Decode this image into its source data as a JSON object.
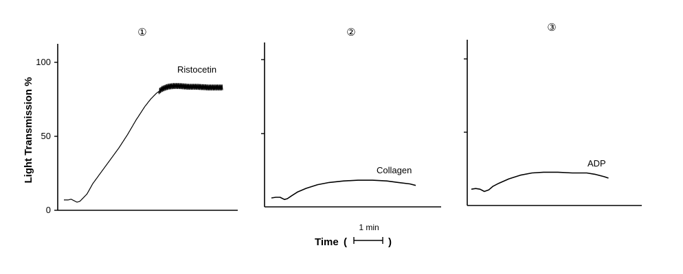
{
  "chart_data": [
    {
      "type": "line",
      "panel_number": "①",
      "ylabel": "Light Transmission %",
      "yticks": [
        "100",
        "50",
        "0"
      ],
      "ylim": [
        0,
        110
      ],
      "series": [
        {
          "name": "Ristocetin",
          "noisy_from_minute": 3.3,
          "x": [
            0,
            0.15,
            0.25,
            0.35,
            0.45,
            0.55,
            0.65,
            0.8,
            1.0,
            1.3,
            1.6,
            1.9,
            2.2,
            2.5,
            2.8,
            3.0,
            3.2,
            3.4,
            3.6,
            3.8,
            4.0,
            4.3,
            4.6,
            5.0,
            5.5
          ],
          "y": [
            7,
            7,
            7.5,
            6.5,
            5.5,
            6,
            8,
            11,
            18,
            26,
            34,
            42,
            51,
            61,
            70,
            75,
            79,
            82,
            83.5,
            84,
            84,
            83.5,
            83.5,
            83,
            83
          ]
        }
      ]
    },
    {
      "type": "line",
      "panel_number": "②",
      "ylim": [
        0,
        110
      ],
      "series": [
        {
          "name": "Collagen",
          "x": [
            0,
            0.15,
            0.3,
            0.45,
            0.55,
            0.7,
            0.9,
            1.2,
            1.6,
            2.0,
            2.5,
            3.0,
            3.5,
            4.0,
            4.4,
            4.8,
            5.0
          ],
          "y": [
            6,
            6.5,
            6.5,
            5,
            5.5,
            7.5,
            10,
            12.5,
            15,
            16.5,
            17.5,
            18,
            18,
            17.5,
            16.5,
            15.5,
            14.5
          ]
        }
      ]
    },
    {
      "type": "line",
      "panel_number": "③",
      "ylim": [
        0,
        110
      ],
      "series": [
        {
          "name": "ADP",
          "x": [
            0,
            0.15,
            0.3,
            0.45,
            0.6,
            0.75,
            0.95,
            1.3,
            1.7,
            2.1,
            2.5,
            3.0,
            3.5,
            4.0,
            4.3,
            4.6,
            4.75
          ],
          "y": [
            11,
            11.5,
            11,
            9.5,
            10.5,
            13,
            15,
            18,
            20.5,
            22,
            22.5,
            22.5,
            22,
            22,
            21,
            19.5,
            18.5
          ]
        }
      ]
    }
  ],
  "xlabel": "Time",
  "scale_bar_label": "1 min",
  "scale_bar_minutes": 1
}
